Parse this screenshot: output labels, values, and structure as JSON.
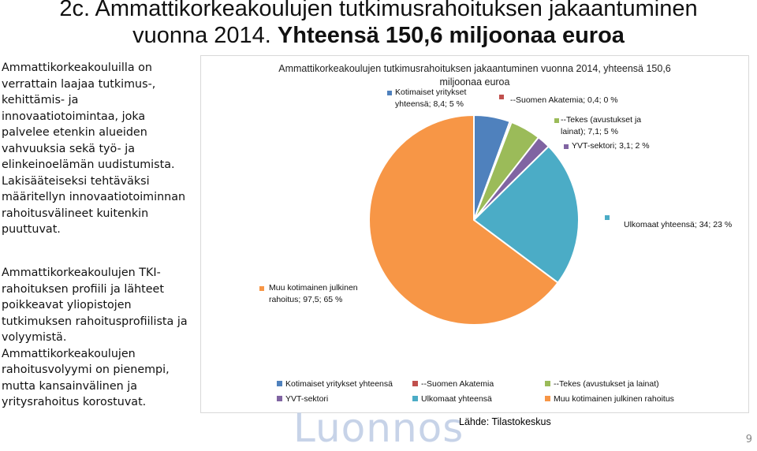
{
  "slide": {
    "title_line1": "2c. Ammattikorkeakoulujen tutkimusrahoituksen jakaantuminen",
    "title_line2_prefix": "vuonna 2014. ",
    "title_line2_bold": "Yhteensä 150,6 miljoonaa euroa",
    "paragraph1": "Ammattikorkeakouluilla on verrattain laajaa tutkimus-, kehittämis- ja innovaatiotoimintaa, joka palvelee etenkin alueiden vahvuuksia sekä työ- ja elinkeinoelämän uudistumista. Lakisääteiseksi tehtäväksi määritellyn innovaatiotoiminnan rahoitusvälineet kuitenkin puuttuvat.",
    "paragraph2": "Ammattikorkeakoulujen TKI-rahoituksen profiili ja lähteet poikkeavat yliopistojen tutkimuksen rahoitusprofiilista ja volyymistä. Ammattikorkeakoulujen rahoitusvolyymi on pienempi, mutta kansainvälinen ja yritysrahoitus korostuvat.",
    "source": "Lähde: Tilastokeskus",
    "watermark": "Luonnos",
    "page_number": "9"
  },
  "chart_data": {
    "type": "pie",
    "title_line1": "Ammattikorkeakoulujen tutkimusrahoituksen jakaantuminen vuonna 2014, yhteensä 150,6",
    "title_line2": "miljoonaa euroa",
    "slices": [
      {
        "name": "Kotimaiset yritykset yhteensä",
        "value": 8.4,
        "percent": 5,
        "color": "#4f81bd",
        "label": [
          "Kotimaiset yritykset",
          "yhteensä; 8,4; 5 %"
        ]
      },
      {
        "name": "--Suomen Akatemia",
        "value": 0.4,
        "percent": 0,
        "color": "#c0504d",
        "label": [
          "--Suomen Akatemia; 0,4; 0 %"
        ]
      },
      {
        "name": "--Tekes (avustukset ja lainat)",
        "value": 7.1,
        "percent": 5,
        "color": "#9bbb59",
        "label": [
          "--Tekes (avustukset ja",
          "lainat); 7,1; 5 %"
        ]
      },
      {
        "name": "YVT-sektori",
        "value": 3.1,
        "percent": 2,
        "color": "#8064a2",
        "label": [
          "YVT-sektori; 3,1; 2 %"
        ]
      },
      {
        "name": "Ulkomaat yhteensä",
        "value": 34,
        "percent": 23,
        "color": "#4bacc6",
        "label": [
          "Ulkomaat yhteensä; 34; 23 %"
        ]
      },
      {
        "name": "Muu kotimainen julkinen rahoitus",
        "value": 97.5,
        "percent": 65,
        "color": "#f79646",
        "label": [
          "Muu kotimainen julkinen",
          "rahoitus; 97,5; 65 %"
        ]
      }
    ],
    "legend": [
      "Kotimaiset yritykset yhteensä",
      "--Suomen Akatemia",
      "--Tekes (avustukset ja lainat)",
      "YVT-sektori",
      "Ulkomaat yhteensä",
      "Muu kotimainen julkinen rahoitus"
    ],
    "legend_position": "bottom"
  }
}
